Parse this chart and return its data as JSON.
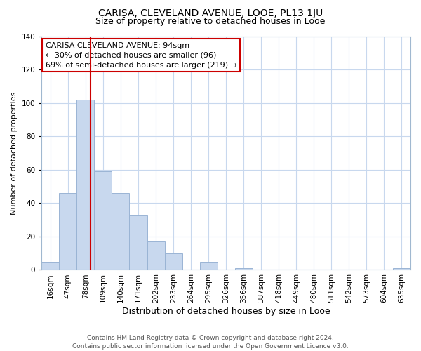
{
  "title": "CARISA, CLEVELAND AVENUE, LOOE, PL13 1JU",
  "subtitle": "Size of property relative to detached houses in Looe",
  "xlabel": "Distribution of detached houses by size in Looe",
  "ylabel": "Number of detached properties",
  "bar_labels": [
    "16sqm",
    "47sqm",
    "78sqm",
    "109sqm",
    "140sqm",
    "171sqm",
    "202sqm",
    "233sqm",
    "264sqm",
    "295sqm",
    "326sqm",
    "356sqm",
    "387sqm",
    "418sqm",
    "449sqm",
    "480sqm",
    "511sqm",
    "542sqm",
    "573sqm",
    "604sqm",
    "635sqm"
  ],
  "bar_values": [
    5,
    46,
    102,
    59,
    46,
    33,
    17,
    10,
    0,
    5,
    0,
    1,
    0,
    0,
    0,
    0,
    0,
    0,
    0,
    0,
    1
  ],
  "bar_color": "#c8d8ee",
  "bar_edge_color": "#9ab4d4",
  "ylim": [
    0,
    140
  ],
  "yticks": [
    0,
    20,
    40,
    60,
    80,
    100,
    120,
    140
  ],
  "vline_color": "#cc0000",
  "vline_x_index": 2,
  "annotation_box_text": "CARISA CLEVELAND AVENUE: 94sqm\n← 30% of detached houses are smaller (96)\n69% of semi-detached houses are larger (219) →",
  "footer_text": "Contains HM Land Registry data © Crown copyright and database right 2024.\nContains public sector information licensed under the Open Government Licence v3.0.",
  "background_color": "#ffffff",
  "grid_color": "#c8d8ee",
  "title_fontsize": 10,
  "subtitle_fontsize": 9,
  "xlabel_fontsize": 9,
  "ylabel_fontsize": 8,
  "tick_fontsize": 7.5,
  "annot_fontsize": 8,
  "footer_fontsize": 6.5
}
